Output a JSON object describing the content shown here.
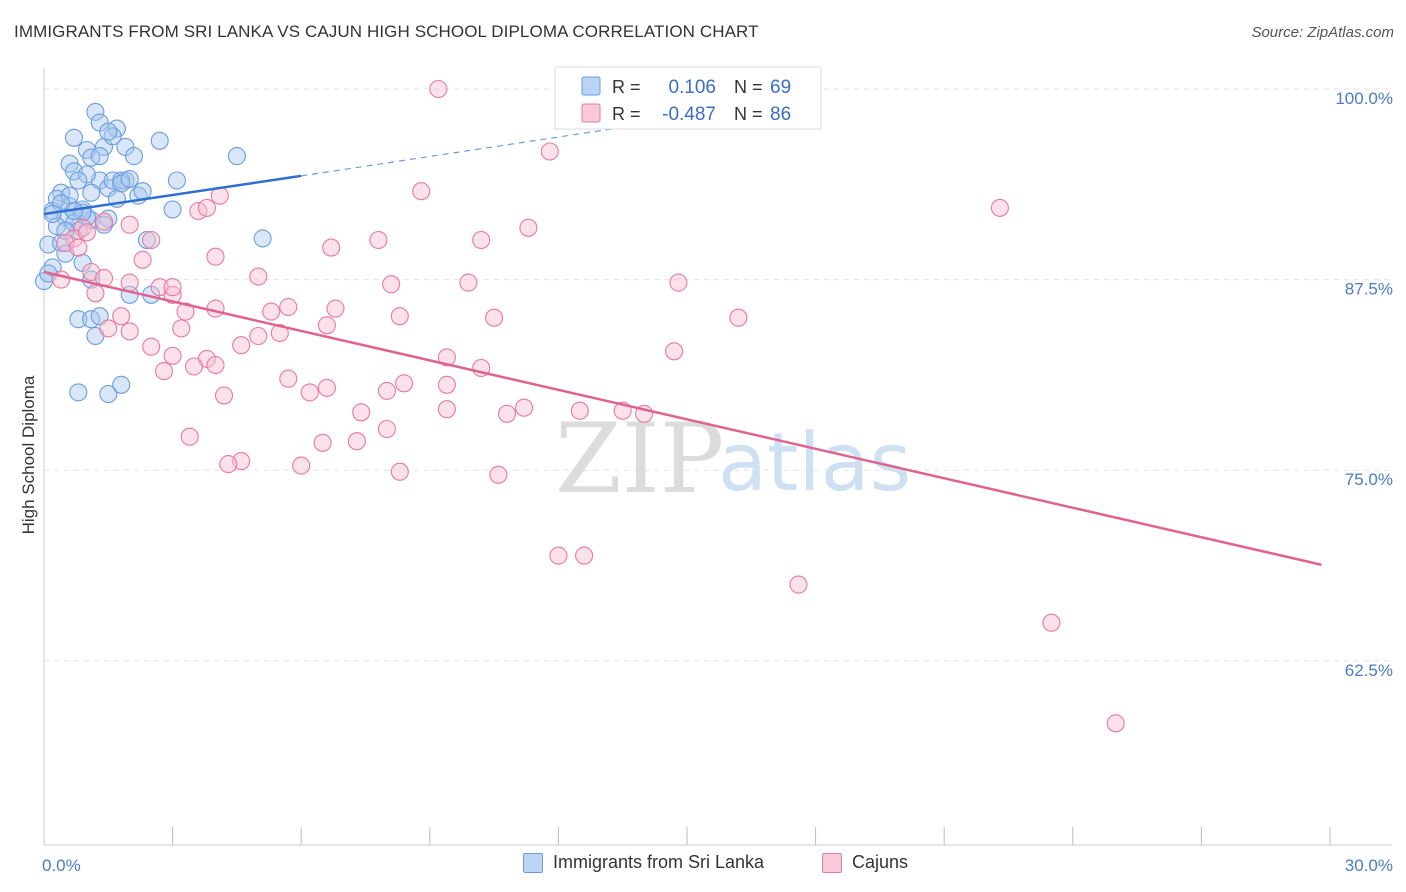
{
  "title": "IMMIGRANTS FROM SRI LANKA VS CAJUN HIGH SCHOOL DIPLOMA CORRELATION CHART",
  "source": "Source: ZipAtlas.com",
  "watermark": {
    "zip": "ZIP",
    "atlas": "atlas"
  },
  "chart_data": {
    "type": "scatter",
    "ylabel": "High School Diploma",
    "xlim": [
      0,
      30
    ],
    "ylim": [
      50,
      102.5
    ],
    "x_tick_labels": [
      {
        "value": 0,
        "label": "0.0%"
      },
      {
        "value": 30,
        "label": "30.0%"
      }
    ],
    "x_minor_ticks": [
      3,
      6,
      9,
      12,
      15,
      18,
      21,
      24,
      27,
      30
    ],
    "y_ticks": [
      {
        "value": 100,
        "label": "100.0%"
      },
      {
        "value": 87.5,
        "label": "87.5%"
      },
      {
        "value": 75,
        "label": "75.0%"
      },
      {
        "value": 62.5,
        "label": "62.5%"
      }
    ],
    "legend": {
      "r_label": "R =",
      "n_label": "N =",
      "entries": [
        {
          "name": "Immigrants from Sri Lanka",
          "r": "0.106",
          "n": "69"
        },
        {
          "name": "Cajuns",
          "r": "-0.487",
          "n": "86"
        }
      ]
    },
    "series": [
      {
        "name": "Immigrants from Sri Lanka",
        "color": "#6a9de0",
        "fill": "#a8c8f0",
        "trend": {
          "x0": 0.0,
          "y0": 91.8,
          "x1": 6.0,
          "y1": 94.3,
          "dash_to_x": 18.0,
          "dash_to_y": 99.4
        },
        "points": [
          [
            1.2,
            98.5
          ],
          [
            1.7,
            97.4
          ],
          [
            2.7,
            96.6
          ],
          [
            1.3,
            97.8
          ],
          [
            0.7,
            96.8
          ],
          [
            1.4,
            96.2
          ],
          [
            1.9,
            96.2
          ],
          [
            2.1,
            95.6
          ],
          [
            1.0,
            96.0
          ],
          [
            1.1,
            95.5
          ],
          [
            0.6,
            95.1
          ],
          [
            0.7,
            94.6
          ],
          [
            1.3,
            94.0
          ],
          [
            1.5,
            93.5
          ],
          [
            1.6,
            94.0
          ],
          [
            1.0,
            94.4
          ],
          [
            0.8,
            94.0
          ],
          [
            1.9,
            94.0
          ],
          [
            2.2,
            93.0
          ],
          [
            0.4,
            93.2
          ],
          [
            0.3,
            92.8
          ],
          [
            0.6,
            92.3
          ],
          [
            0.9,
            92.1
          ],
          [
            0.2,
            92.0
          ],
          [
            0.5,
            91.6
          ],
          [
            0.7,
            91.2
          ],
          [
            1.1,
            91.4
          ],
          [
            0.3,
            91.0
          ],
          [
            0.8,
            90.7
          ],
          [
            1.0,
            91.6
          ],
          [
            1.3,
            95.6
          ],
          [
            1.8,
            94.0
          ],
          [
            3.1,
            94.0
          ],
          [
            4.5,
            95.6
          ],
          [
            3.0,
            92.1
          ],
          [
            2.3,
            93.3
          ],
          [
            0.1,
            89.8
          ],
          [
            0.4,
            89.9
          ],
          [
            0.5,
            89.2
          ],
          [
            0.5,
            90.7
          ],
          [
            0.2,
            88.3
          ],
          [
            0.0,
            87.4
          ],
          [
            0.1,
            87.9
          ],
          [
            0.9,
            88.6
          ],
          [
            1.1,
            87.5
          ],
          [
            0.8,
            84.9
          ],
          [
            1.1,
            84.9
          ],
          [
            1.3,
            85.1
          ],
          [
            1.2,
            83.8
          ],
          [
            0.8,
            80.1
          ],
          [
            1.5,
            80.0
          ],
          [
            1.8,
            80.6
          ],
          [
            2.0,
            86.5
          ],
          [
            2.5,
            86.5
          ],
          [
            2.4,
            90.1
          ],
          [
            5.1,
            90.2
          ],
          [
            0.6,
            93.0
          ],
          [
            1.5,
            91.5
          ],
          [
            1.8,
            93.8
          ],
          [
            2.0,
            94.1
          ],
          [
            1.7,
            92.8
          ],
          [
            0.4,
            92.5
          ],
          [
            0.2,
            91.8
          ],
          [
            0.9,
            91.9
          ],
          [
            1.4,
            91.1
          ],
          [
            1.6,
            96.9
          ],
          [
            1.1,
            93.2
          ],
          [
            0.7,
            92.0
          ],
          [
            1.5,
            97.2
          ]
        ]
      },
      {
        "name": "Cajuns",
        "color": "#e87aa0",
        "fill": "#f6bed0",
        "trend": {
          "x0": 0.0,
          "y0": 88.0,
          "x1": 29.8,
          "y1": 68.8
        },
        "points": [
          [
            9.2,
            100.0
          ],
          [
            11.8,
            95.9
          ],
          [
            4.1,
            93.0
          ],
          [
            8.8,
            93.3
          ],
          [
            3.6,
            92.0
          ],
          [
            3.8,
            92.2
          ],
          [
            1.4,
            91.3
          ],
          [
            0.9,
            90.9
          ],
          [
            2.0,
            91.1
          ],
          [
            0.7,
            90.2
          ],
          [
            2.5,
            90.1
          ],
          [
            7.8,
            90.1
          ],
          [
            10.2,
            90.1
          ],
          [
            11.3,
            90.9
          ],
          [
            6.7,
            89.6
          ],
          [
            4.0,
            89.0
          ],
          [
            2.3,
            88.8
          ],
          [
            0.5,
            89.9
          ],
          [
            0.8,
            89.6
          ],
          [
            1.1,
            88.0
          ],
          [
            1.4,
            87.6
          ],
          [
            2.0,
            87.3
          ],
          [
            2.7,
            87.0
          ],
          [
            5.0,
            87.7
          ],
          [
            8.1,
            87.2
          ],
          [
            9.9,
            87.3
          ],
          [
            14.8,
            87.3
          ],
          [
            0.4,
            87.5
          ],
          [
            1.2,
            86.6
          ],
          [
            3.0,
            86.5
          ],
          [
            4.0,
            85.6
          ],
          [
            5.3,
            85.4
          ],
          [
            5.7,
            85.7
          ],
          [
            6.8,
            85.6
          ],
          [
            8.3,
            85.1
          ],
          [
            10.5,
            85.0
          ],
          [
            16.2,
            85.0
          ],
          [
            1.5,
            84.3
          ],
          [
            2.0,
            84.1
          ],
          [
            3.2,
            84.3
          ],
          [
            5.0,
            83.8
          ],
          [
            5.5,
            84.0
          ],
          [
            6.6,
            84.5
          ],
          [
            4.6,
            83.2
          ],
          [
            2.5,
            83.1
          ],
          [
            3.0,
            82.5
          ],
          [
            3.8,
            82.3
          ],
          [
            9.4,
            82.4
          ],
          [
            10.2,
            81.7
          ],
          [
            14.7,
            82.8
          ],
          [
            2.8,
            81.5
          ],
          [
            3.5,
            81.8
          ],
          [
            5.7,
            81.0
          ],
          [
            6.2,
            80.1
          ],
          [
            6.6,
            80.4
          ],
          [
            8.0,
            80.2
          ],
          [
            8.4,
            80.7
          ],
          [
            9.4,
            80.6
          ],
          [
            9.4,
            79.0
          ],
          [
            11.2,
            79.1
          ],
          [
            12.5,
            78.9
          ],
          [
            14.0,
            78.7
          ],
          [
            10.8,
            78.7
          ],
          [
            7.4,
            78.8
          ],
          [
            8.0,
            77.7
          ],
          [
            4.2,
            79.9
          ],
          [
            7.3,
            76.9
          ],
          [
            3.4,
            77.2
          ],
          [
            4.6,
            75.6
          ],
          [
            4.3,
            75.4
          ],
          [
            6.0,
            75.3
          ],
          [
            8.3,
            74.9
          ],
          [
            10.6,
            74.7
          ],
          [
            12.0,
            69.4
          ],
          [
            12.6,
            69.4
          ],
          [
            17.6,
            67.5
          ],
          [
            23.5,
            65.0
          ],
          [
            25.0,
            58.4
          ],
          [
            22.3,
            92.2
          ],
          [
            3.3,
            85.4
          ],
          [
            1.0,
            90.6
          ],
          [
            13.5,
            78.9
          ],
          [
            6.5,
            76.8
          ],
          [
            4.0,
            81.9
          ],
          [
            1.8,
            85.1
          ],
          [
            3.0,
            87.0
          ]
        ]
      }
    ]
  }
}
